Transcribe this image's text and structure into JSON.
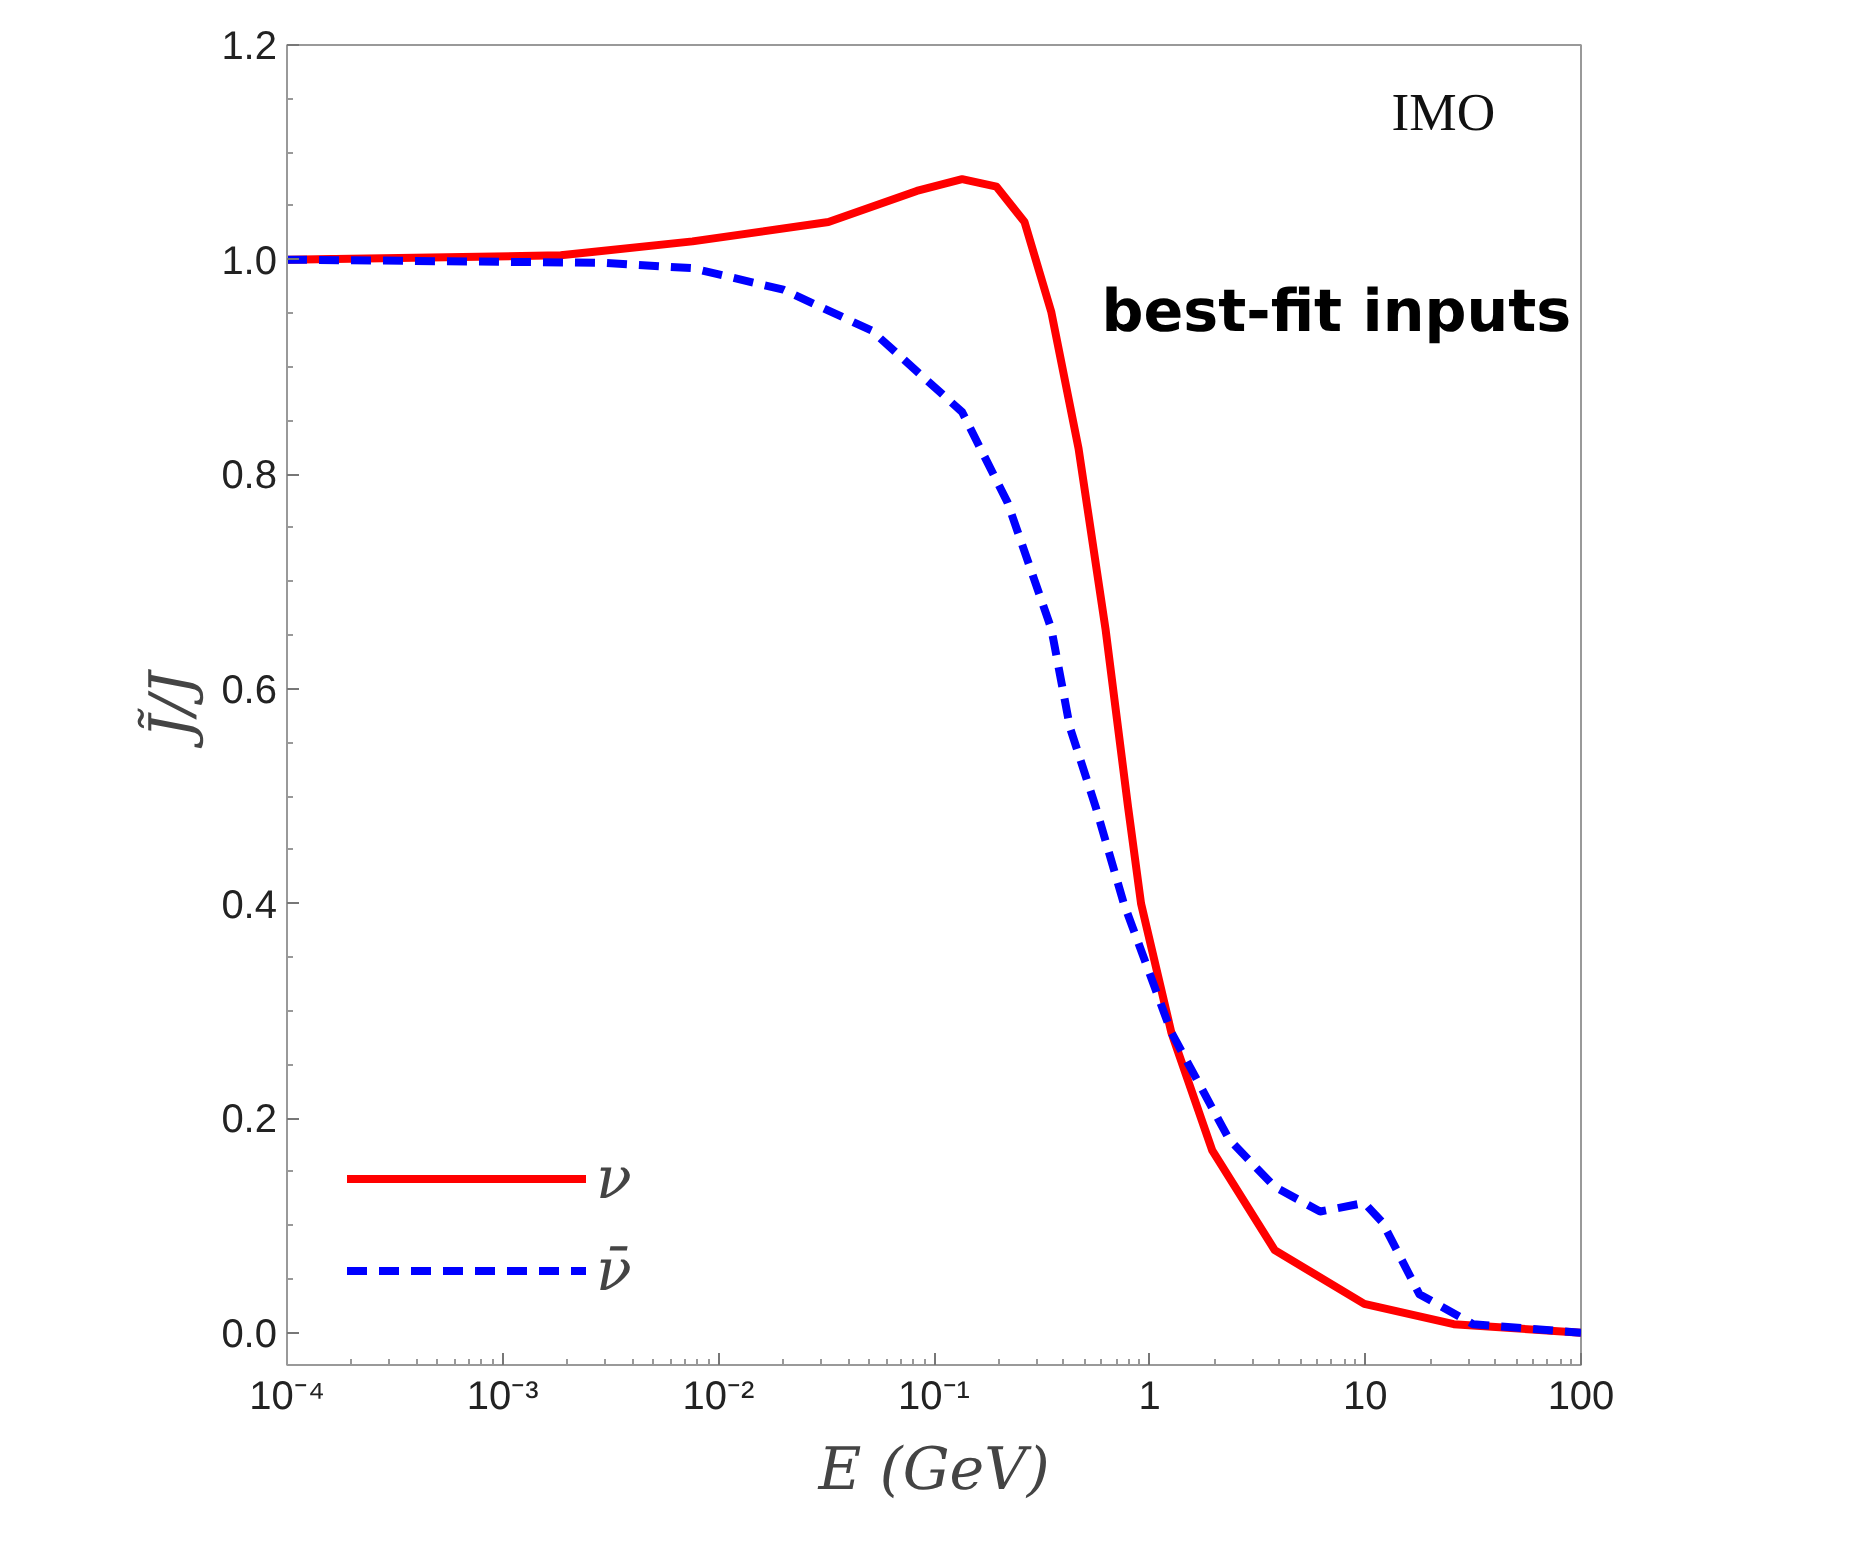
{
  "chart_data": {
    "type": "line",
    "xlabel": "E (GeV)",
    "ylabel": "J̃/J",
    "annotations": [
      "IMO",
      "best-fit inputs"
    ],
    "log": "x",
    "xlim": [
      0.0001,
      100
    ],
    "ylim": [
      -0.03,
      1.2
    ],
    "xticks": [
      {
        "value": 0.0001,
        "label": "10⁻⁴"
      },
      {
        "value": 0.001,
        "label": "10⁻³"
      },
      {
        "value": 0.01,
        "label": "10⁻²"
      },
      {
        "value": 0.1,
        "label": "10⁻¹"
      },
      1,
      10,
      100
    ],
    "yticks": [
      {
        "value": 0,
        "label": "0.0"
      },
      0.2,
      0.4,
      0.6,
      0.8,
      {
        "value": 1,
        "label": "1.0"
      },
      1.2
    ],
    "legend": "bottom left",
    "grid": false,
    "series": [
      {
        "name": "ν",
        "color": "#ff0000",
        "line_style": "solid",
        "x": [
          0.0001,
          0.00186,
          0.00759,
          0.0324,
          0.0832,
          0.135,
          0.195,
          0.263,
          0.35,
          0.468,
          0.624,
          0.794,
          0.912,
          1.26,
          1.95,
          3.8,
          9.89,
          25.7,
          100
        ],
        "values": [
          1.0,
          1.004,
          1.017,
          1.035,
          1.064,
          1.075,
          1.068,
          1.035,
          0.951,
          0.824,
          0.656,
          0.49,
          0.4,
          0.28,
          0.17,
          0.077,
          0.027,
          0.008,
          0.0
        ]
      },
      {
        "name": "ν̄",
        "color": "#0000ff",
        "line_style": "dashed",
        "x": [
          0.0001,
          0.00295,
          0.00759,
          0.02,
          0.0513,
          0.135,
          0.219,
          0.35,
          0.427,
          0.562,
          0.759,
          1.26,
          2.34,
          3.8,
          6.17,
          9.89,
          12.0,
          17.8,
          31.6,
          100
        ],
        "values": [
          1.0,
          0.997,
          0.992,
          0.972,
          0.934,
          0.858,
          0.774,
          0.656,
          0.564,
          0.49,
          0.4,
          0.28,
          0.18,
          0.136,
          0.113,
          0.121,
          0.103,
          0.036,
          0.008,
          0.0
        ]
      }
    ]
  }
}
